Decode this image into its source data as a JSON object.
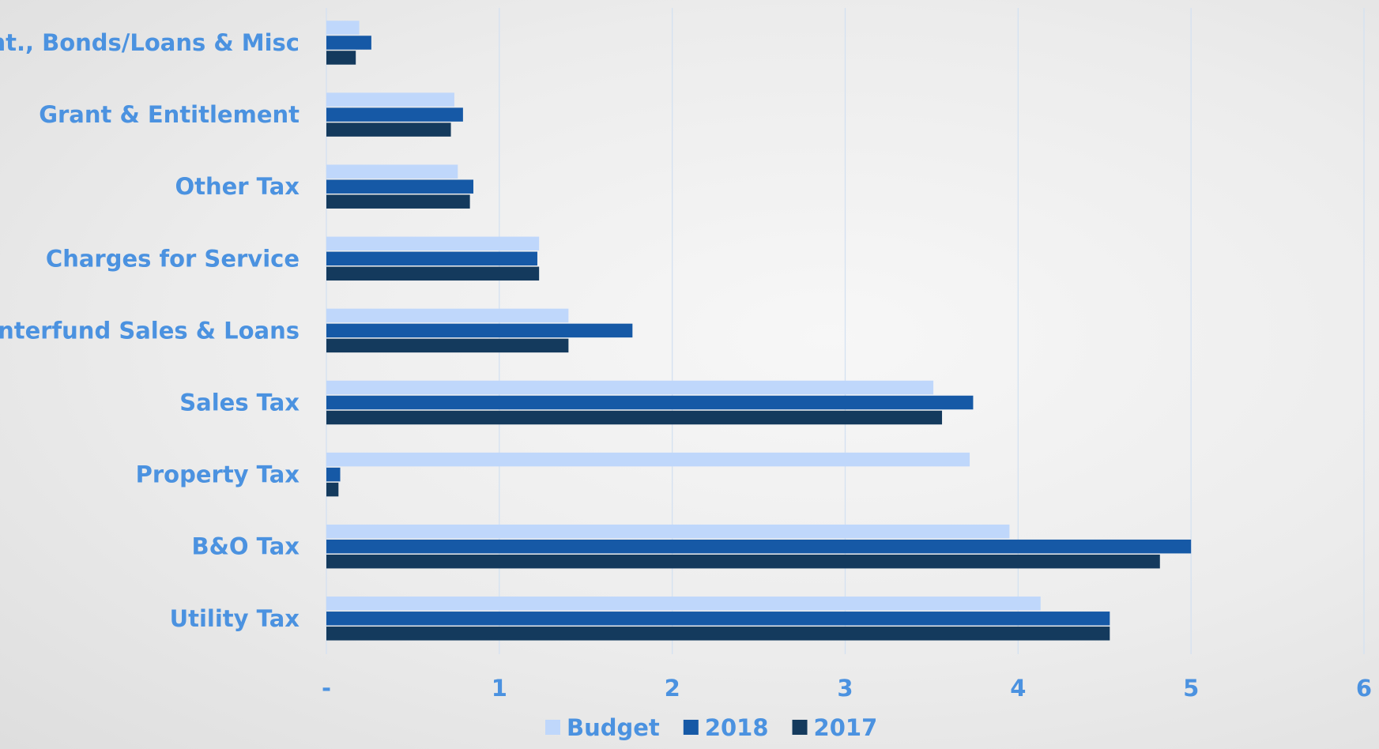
{
  "chart_data": {
    "type": "bar",
    "orientation": "horizontal",
    "title": "",
    "xlabel": "",
    "ylabel": "",
    "categories": [
      "Int., Bonds/Loans & Misc",
      "Grant & Entitlement",
      "Other Tax",
      "Charges for Service",
      "Interfund Sales & Loans",
      "Sales Tax",
      "Property Tax",
      "B&O Tax",
      "Utility Tax"
    ],
    "series": [
      {
        "name": "Budget",
        "values": [
          0.19,
          0.74,
          0.76,
          1.23,
          1.4,
          3.51,
          3.72,
          3.95,
          4.13
        ]
      },
      {
        "name": "2018",
        "values": [
          0.26,
          0.79,
          0.85,
          1.22,
          1.77,
          3.74,
          0.08,
          5.0,
          4.53
        ]
      },
      {
        "name": "2017",
        "values": [
          0.17,
          0.72,
          0.83,
          1.23,
          1.4,
          3.56,
          0.07,
          4.82,
          4.53
        ]
      }
    ],
    "xlim": [
      0,
      6
    ],
    "ticks": [
      "-",
      "1",
      "2",
      "3",
      "4",
      "5",
      "6"
    ],
    "grid": true,
    "legend": "bottom"
  },
  "colors": {
    "Budget": "#bfd7fb",
    "2018": "#1659a6",
    "2017": "#143a5d",
    "label": "#4b92e0",
    "grid": "#d4e1f1"
  }
}
